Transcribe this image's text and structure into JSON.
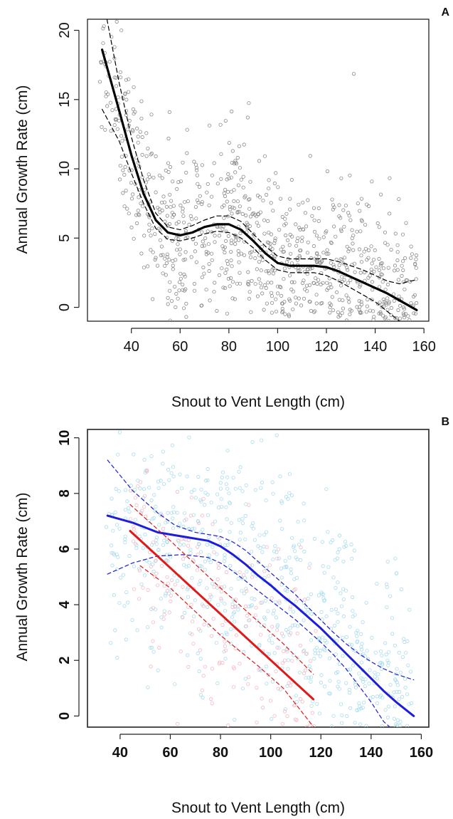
{
  "figure": {
    "chart_data": [
      {
        "type": "scatter",
        "panel_label": "A",
        "title": "",
        "xlabel": "Snout to Vent Length (cm)",
        "ylabel": "Annual Growth Rate (cm)",
        "xlim": [
          22,
          162
        ],
        "ylim": [
          -1,
          20.8
        ],
        "xticks": [
          40,
          60,
          80,
          100,
          120,
          140,
          160
        ],
        "yticks": [
          0,
          5,
          10,
          15,
          20
        ],
        "grid": false,
        "legend": "none",
        "point_style": "open-circle",
        "series": [
          {
            "role": "scatter",
            "color": "#8a8a8a",
            "n_points": 900,
            "x_range": [
              27,
              157
            ],
            "y_range": [
              -1,
              21
            ]
          },
          {
            "role": "fit",
            "color": "#000000",
            "line_style": "solid",
            "x": [
              28,
              35,
              40,
              45,
              50,
              55,
              60,
              65,
              70,
              75,
              80,
              85,
              90,
              95,
              100,
              105,
              110,
              115,
              120,
              125,
              130,
              135,
              140,
              145,
              150,
              157
            ],
            "y": [
              18.6,
              14.2,
              11.0,
              8.2,
              6.3,
              5.4,
              5.2,
              5.4,
              5.8,
              6.0,
              6.0,
              5.6,
              4.8,
              3.9,
              3.2,
              3.0,
              3.0,
              3.0,
              2.9,
              2.6,
              2.2,
              1.8,
              1.4,
              1.0,
              0.5,
              -0.2
            ]
          },
          {
            "role": "ci-upper",
            "color": "#000000",
            "line_style": "dashed",
            "x": [
              30,
              35,
              40,
              45,
              50,
              55,
              60,
              65,
              70,
              75,
              80,
              85,
              90,
              95,
              100,
              105,
              110,
              115,
              120,
              125,
              130,
              135,
              140,
              145,
              150,
              157
            ],
            "y": [
              20.8,
              16.2,
              12.3,
              9.2,
              6.8,
              5.8,
              5.6,
              5.9,
              6.3,
              6.6,
              6.6,
              6.2,
              5.3,
              4.4,
              3.7,
              3.5,
              3.5,
              3.5,
              3.5,
              3.3,
              3.0,
              2.7,
              2.3,
              1.9,
              1.7,
              2.0
            ]
          },
          {
            "role": "ci-lower",
            "color": "#000000",
            "line_style": "dashed",
            "x": [
              28,
              35,
              40,
              45,
              50,
              55,
              60,
              65,
              70,
              75,
              80,
              85,
              90,
              95,
              100,
              105,
              110,
              115,
              120,
              125,
              130,
              135,
              140,
              145,
              150
            ],
            "y": [
              14.3,
              12.0,
              9.7,
              7.5,
              5.7,
              4.9,
              4.8,
              5.0,
              5.3,
              5.5,
              5.4,
              5.0,
              4.3,
              3.4,
              2.7,
              2.5,
              2.5,
              2.5,
              2.3,
              1.9,
              1.4,
              0.9,
              0.4,
              -0.3,
              -1.0
            ]
          }
        ]
      },
      {
        "type": "scatter",
        "panel_label": "B",
        "title": "",
        "xlabel": "Snout to Vent Length (cm)",
        "ylabel": "Annual Growth Rate (cm)",
        "xlim": [
          27,
          163
        ],
        "ylim": [
          -0.4,
          10.3
        ],
        "xticks": [
          40,
          60,
          80,
          100,
          120,
          140,
          160
        ],
        "yticks": [
          0,
          2,
          4,
          6,
          8,
          10
        ],
        "grid": false,
        "legend": "none",
        "point_style": "open-circle",
        "series": [
          {
            "role": "scatter",
            "color": "#a8dcec",
            "n_points": 700,
            "x_range": [
              34,
              157
            ],
            "y_range": [
              -0.4,
              10.3
            ]
          },
          {
            "role": "scatter",
            "color": "#f4b8c4",
            "n_points": 200,
            "x_range": [
              44,
              118
            ],
            "y_range": [
              -0.4,
              9.0
            ]
          },
          {
            "role": "fit",
            "color": "#1c1cdc",
            "line_style": "solid",
            "x": [
              35,
              45,
              55,
              65,
              75,
              80,
              85,
              90,
              95,
              100,
              105,
              110,
              115,
              120,
              125,
              130,
              135,
              140,
              145,
              150,
              157
            ],
            "y": [
              7.2,
              6.95,
              6.6,
              6.45,
              6.3,
              6.1,
              5.8,
              5.45,
              5.05,
              4.7,
              4.3,
              3.95,
              3.55,
              3.15,
              2.7,
              2.25,
              1.8,
              1.35,
              0.9,
              0.5,
              0.0
            ]
          },
          {
            "role": "ci-upper",
            "color": "#1c1cdc",
            "line_style": "dashed",
            "x": [
              35,
              45,
              55,
              62,
              70,
              80,
              85,
              90,
              95,
              100,
              105,
              110,
              115,
              120,
              125,
              130,
              135,
              140,
              145,
              150,
              157
            ],
            "y": [
              9.2,
              8.1,
              7.3,
              6.85,
              6.6,
              6.45,
              6.25,
              5.95,
              5.55,
              5.15,
              4.75,
              4.35,
              3.9,
              3.45,
              3.0,
              2.6,
              2.25,
              1.95,
              1.7,
              1.5,
              1.3
            ]
          },
          {
            "role": "ci-lower",
            "color": "#1c1cdc",
            "line_style": "dashed",
            "x": [
              35,
              45,
              55,
              65,
              75,
              80,
              85,
              90,
              95,
              100,
              105,
              110,
              115,
              120,
              125,
              130,
              135,
              140,
              145,
              150
            ],
            "y": [
              5.1,
              5.5,
              5.75,
              5.8,
              5.7,
              5.5,
              5.2,
              4.85,
              4.5,
              4.15,
              3.8,
              3.45,
              3.05,
              2.65,
              2.2,
              1.7,
              1.1,
              0.5,
              -0.2,
              -0.6
            ]
          },
          {
            "role": "fit",
            "color": "#e01818",
            "line_style": "solid",
            "x": [
              44,
              117
            ],
            "y": [
              6.65,
              0.6
            ]
          },
          {
            "role": "ci-upper",
            "color": "#e01818",
            "line_style": "dashed",
            "x": [
              44,
              60,
              80,
              95,
              105,
              117
            ],
            "y": [
              7.6,
              6.3,
              4.6,
              3.4,
              2.6,
              1.5
            ]
          },
          {
            "role": "ci-lower",
            "color": "#e01818",
            "line_style": "dashed",
            "x": [
              48,
              60,
              80,
              95,
              105,
              118
            ],
            "y": [
              5.4,
              4.6,
              2.9,
              1.8,
              1.0,
              -0.5
            ]
          }
        ]
      }
    ]
  }
}
